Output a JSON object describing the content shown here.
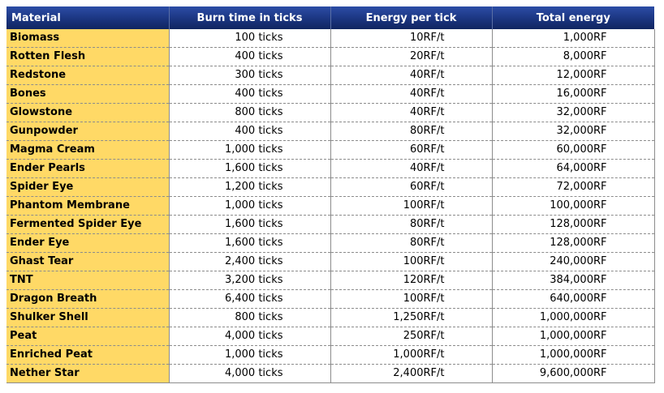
{
  "table": {
    "headers": [
      "Material",
      "Burn time in ticks",
      "Energy per tick",
      "Total energy"
    ],
    "rows": [
      [
        "Biomass",
        "100 ticks",
        "10RF/t",
        "1,000RF"
      ],
      [
        "Rotten Flesh",
        "400 ticks",
        "20RF/t",
        "8,000RF"
      ],
      [
        "Redstone",
        "300 ticks",
        "40RF/t",
        "12,000RF"
      ],
      [
        "Bones",
        "400 ticks",
        "40RF/t",
        "16,000RF"
      ],
      [
        "Glowstone",
        "800 ticks",
        "40RF/t",
        "32,000RF"
      ],
      [
        "Gunpowder",
        "400 ticks",
        "80RF/t",
        "32,000RF"
      ],
      [
        "Magma Cream",
        "1,000 ticks",
        "60RF/t",
        "60,000RF"
      ],
      [
        "Ender Pearls",
        "1,600 ticks",
        "40RF/t",
        "64,000RF"
      ],
      [
        "Spider Eye",
        "1,200 ticks",
        "60RF/t",
        "72,000RF"
      ],
      [
        "Phantom Membrane",
        "1,000 ticks",
        "100RF/t",
        "100,000RF"
      ],
      [
        "Fermented Spider Eye",
        "1,600 ticks",
        "80RF/t",
        "128,000RF"
      ],
      [
        "Ender Eye",
        "1,600 ticks",
        "80RF/t",
        "128,000RF"
      ],
      [
        "Ghast Tear",
        "2,400 ticks",
        "100RF/t",
        "240,000RF"
      ],
      [
        "TNT",
        "3,200 ticks",
        "120RF/t",
        "384,000RF"
      ],
      [
        "Dragon Breath",
        "6,400 ticks",
        "100RF/t",
        "640,000RF"
      ],
      [
        "Shulker Shell",
        "800 ticks",
        "1,250RF/t",
        "1,000,000RF"
      ],
      [
        "Peat",
        "4,000 ticks",
        "250RF/t",
        "1,000,000RF"
      ],
      [
        "Enriched Peat",
        "1,000 ticks",
        "1,000RF/t",
        "1,000,000RF"
      ],
      [
        "Nether Star",
        "4,000 ticks",
        "2,400RF/t",
        "9,600,000RF"
      ]
    ]
  },
  "colors": {
    "header_bg": "#1b3580",
    "material_bg": "#ffd966",
    "grid": "#8c8c8c"
  }
}
